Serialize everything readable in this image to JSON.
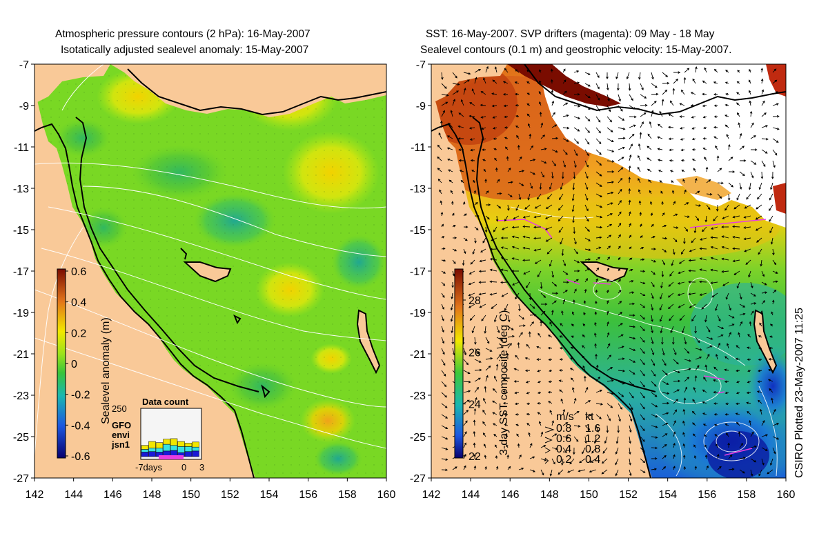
{
  "left_panel": {
    "title_line1": "Atmospheric pressure contours (2 hPa): 16-May-2007",
    "title_line2": "Isotatically adjusted sealevel anomaly: 15-May-2007",
    "colorbar": {
      "label": "Sealevel anomaly (m)",
      "ticks": [
        "0.6",
        "0.4",
        "0.2",
        "0",
        "-0.2",
        "-0.4",
        "-0.6"
      ]
    },
    "data_count": {
      "title": "Data count",
      "ymax_label": "250",
      "legend": [
        {
          "name": "GFO",
          "color": "#f2e600"
        },
        {
          "name": "envi",
          "color": "#37e2e2"
        },
        {
          "name": "jsn1",
          "color": "#1a1ad6"
        }
      ],
      "x_labels": [
        "-7days",
        "0",
        "3"
      ],
      "bars": [
        {
          "jsn1": 40,
          "envi": 25,
          "GFO": 35
        },
        {
          "jsn1": 45,
          "envi": 30,
          "GFO": 60
        },
        {
          "jsn1": 40,
          "envi": 35,
          "GFO": 50
        },
        {
          "jsn1": 50,
          "envi": 60,
          "GFO": 45
        },
        {
          "jsn1": 55,
          "envi": 45,
          "GFO": 60
        },
        {
          "jsn1": 35,
          "envi": 55,
          "GFO": 45
        },
        {
          "jsn1": 45,
          "envi": 45,
          "GFO": 30
        },
        {
          "jsn1": 50,
          "envi": 35,
          "GFO": 45
        }
      ]
    }
  },
  "right_panel": {
    "title_line1": "SST: 16-May-2007. SVP drifters (magenta): 09 May - 18 May",
    "title_line2": "Sealevel contours (0.1 m) and geostrophic velocity: 15-May-2007.",
    "colorbar": {
      "label": "3-day SST composite (deg C)",
      "ticks": [
        "28",
        "26",
        "24",
        "22"
      ]
    },
    "velocity_legend": {
      "header_ms": "m/s",
      "header_kt": "kt",
      "rows": [
        {
          "ms": "0.8",
          "kt": "1.6"
        },
        {
          "ms": "0.6",
          "kt": "1.2"
        },
        {
          "ms": "0.4",
          "kt": "0.8"
        },
        {
          "ms": "0.2",
          "kt": "0.4"
        }
      ]
    }
  },
  "axes": {
    "y_ticks": [
      "-7",
      "-9",
      "-11",
      "-13",
      "-15",
      "-17",
      "-19",
      "-21",
      "-23",
      "-25",
      "-27"
    ],
    "x_ticks": [
      "142",
      "144",
      "146",
      "148",
      "150",
      "152",
      "154",
      "156",
      "158",
      "160"
    ]
  },
  "credit": "CSIRO Plotted 23-May-2007 11:25",
  "colors": {
    "land": "#f9c998",
    "sla_green": "#67d22a",
    "sla_lime": "#b9ec12",
    "sla_yellow": "#f2e800",
    "sst_orange": "#f08a1c",
    "sst_green": "#45c845",
    "sst_blue": "#2a8bd8",
    "cloud": "#ffffff"
  }
}
